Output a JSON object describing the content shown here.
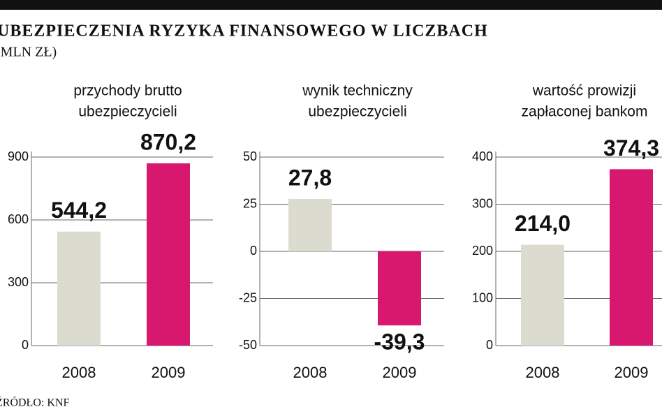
{
  "title": "UBEZPIECZENIA RYZYKA FINANSOWEGO W LICZBACH",
  "subtitle": "(MLN ZŁ)",
  "source": "ŹRÓDŁO: KNF",
  "chart_data": [
    {
      "type": "bar",
      "title": [
        "przychody brutto",
        "ubezpieczycieli"
      ],
      "categories": [
        "2008",
        "2009"
      ],
      "values": [
        544.2,
        870.2
      ],
      "value_labels": [
        "544,2",
        "870,2"
      ],
      "colors": [
        "#dcdbd0",
        "#d8186f"
      ],
      "ylim": [
        0,
        900
      ],
      "yticks": [
        0,
        300,
        600,
        900
      ],
      "grid": true
    },
    {
      "type": "bar",
      "title": [
        "wynik techniczny",
        "ubezpieczycieli"
      ],
      "categories": [
        "2008",
        "2009"
      ],
      "values": [
        27.8,
        -39.3
      ],
      "value_labels": [
        "27,8",
        "-39,3"
      ],
      "colors": [
        "#dcdbd0",
        "#d8186f"
      ],
      "ylim": [
        -50,
        50
      ],
      "yticks": [
        -50,
        -25,
        0,
        25,
        50
      ],
      "grid": true
    },
    {
      "type": "bar",
      "title": [
        "wartość prowizji",
        "zapłaconej bankom"
      ],
      "categories": [
        "2008",
        "2009"
      ],
      "values": [
        214.0,
        374.3
      ],
      "value_labels": [
        "214,0",
        "374,3"
      ],
      "colors": [
        "#dcdbd0",
        "#d8186f"
      ],
      "ylim": [
        0,
        400
      ],
      "yticks": [
        0,
        100,
        200,
        300,
        400
      ],
      "grid": true
    }
  ]
}
